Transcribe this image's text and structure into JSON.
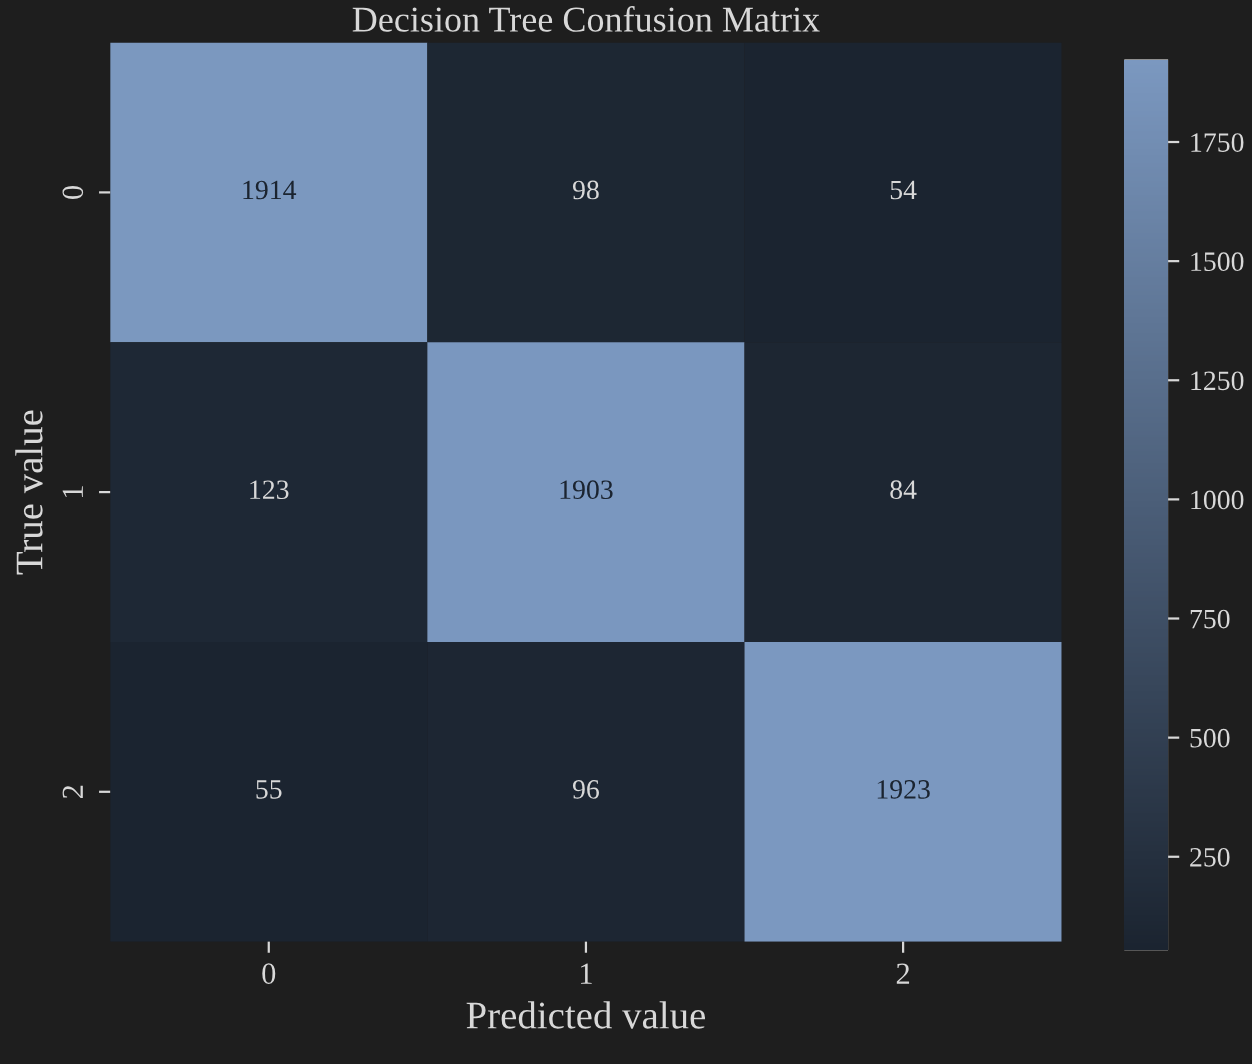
{
  "chart_data": {
    "type": "heatmap",
    "title": "Decision Tree Confusion Matrix",
    "xlabel": "Predicted value",
    "ylabel": "True value",
    "categories": [
      "0",
      "1",
      "2"
    ],
    "y_categories": [
      "0",
      "1",
      "2"
    ],
    "cells": [
      [
        1914,
        98,
        54
      ],
      [
        123,
        1903,
        84
      ],
      [
        55,
        96,
        1923
      ]
    ],
    "data_labels": true,
    "clim": [
      54,
      1923
    ],
    "cticks": [
      250,
      500,
      750,
      1000,
      1250,
      1500,
      1750
    ],
    "colors": [
      "#1b2430",
      "#7b98c0"
    ]
  }
}
